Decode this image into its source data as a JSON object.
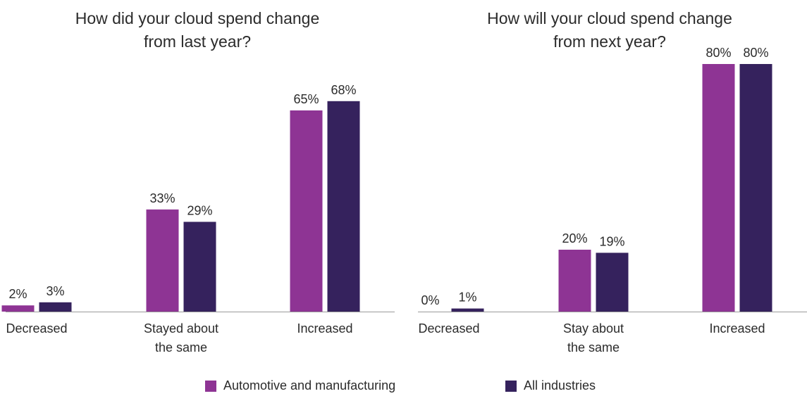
{
  "colors": {
    "automotive": "#8e3494",
    "all_industries": "#35225d",
    "axis": "#9a9a9a",
    "text": "#2b2b2b"
  },
  "legend": {
    "automotive": "Automotive and manufacturing",
    "all_industries": "All industries"
  },
  "chart_data": [
    {
      "type": "bar",
      "title_lines": [
        "How did your cloud spend change",
        "from last year?"
      ],
      "categories": [
        [
          "Decreased"
        ],
        [
          "Stayed about",
          "the same"
        ],
        [
          "Increased"
        ]
      ],
      "ylim": [
        0,
        100
      ],
      "series": [
        {
          "name": "Automotive and manufacturing",
          "values": [
            2,
            33,
            65
          ],
          "labels": [
            "2%",
            "33%",
            "65%"
          ]
        },
        {
          "name": "All industries",
          "values": [
            3,
            29,
            68
          ],
          "labels": [
            "3%",
            "29%",
            "68%"
          ]
        }
      ],
      "legend_placement": "bottom-center",
      "grid": false
    },
    {
      "type": "bar",
      "title_lines": [
        "How will your cloud spend change",
        "from next year?"
      ],
      "categories": [
        [
          "Decreased"
        ],
        [
          "Stay about",
          "the same"
        ],
        [
          "Increased"
        ]
      ],
      "ylim": [
        0,
        100
      ],
      "series": [
        {
          "name": "Automotive and manufacturing",
          "values": [
            0,
            20,
            80
          ],
          "labels": [
            "0%",
            "20%",
            "80%"
          ]
        },
        {
          "name": "All industries",
          "values": [
            1,
            19,
            80
          ],
          "labels": [
            "1%",
            "19%",
            "80%"
          ]
        }
      ],
      "legend_placement": "bottom-center",
      "grid": false
    }
  ]
}
